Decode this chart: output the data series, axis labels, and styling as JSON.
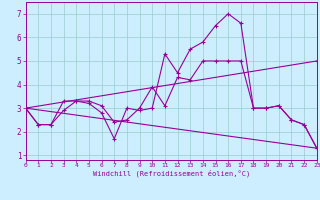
{
  "xlabel": "Windchill (Refroidissement éolien,°C)",
  "bg_color": "#cceeff",
  "line_color": "#990099",
  "grid_color": "#99cccc",
  "xlim": [
    0,
    23
  ],
  "ylim": [
    0.8,
    7.5
  ],
  "xticks": [
    0,
    1,
    2,
    3,
    4,
    5,
    6,
    7,
    8,
    9,
    10,
    11,
    12,
    13,
    14,
    15,
    16,
    17,
    18,
    19,
    20,
    21,
    22,
    23
  ],
  "yticks": [
    1,
    2,
    3,
    4,
    5,
    6,
    7
  ],
  "lines": [
    {
      "x": [
        0,
        1,
        2,
        3,
        4,
        5,
        6,
        7,
        8,
        9,
        10,
        11,
        12,
        13,
        14,
        15,
        16,
        17,
        18,
        19,
        20,
        21,
        22,
        23
      ],
      "y": [
        3.0,
        2.3,
        2.3,
        2.9,
        3.3,
        3.2,
        2.8,
        1.7,
        3.0,
        2.9,
        3.0,
        5.3,
        4.5,
        5.5,
        5.8,
        6.5,
        7.0,
        6.6,
        3.0,
        3.0,
        3.1,
        2.5,
        2.3,
        1.3
      ]
    },
    {
      "x": [
        0,
        1,
        2,
        3,
        4,
        5,
        6,
        7,
        8,
        9,
        10,
        11,
        12,
        13,
        14,
        15,
        16,
        17,
        18,
        19,
        20,
        21,
        22,
        23
      ],
      "y": [
        3.0,
        2.3,
        2.3,
        3.3,
        3.3,
        3.3,
        3.1,
        2.4,
        2.5,
        3.0,
        3.9,
        3.1,
        4.3,
        4.2,
        5.0,
        5.0,
        5.0,
        5.0,
        3.0,
        3.0,
        3.1,
        2.5,
        2.3,
        1.3
      ]
    },
    {
      "x": [
        0,
        23
      ],
      "y": [
        3.0,
        1.3
      ]
    },
    {
      "x": [
        0,
        23
      ],
      "y": [
        3.0,
        5.0
      ]
    }
  ]
}
